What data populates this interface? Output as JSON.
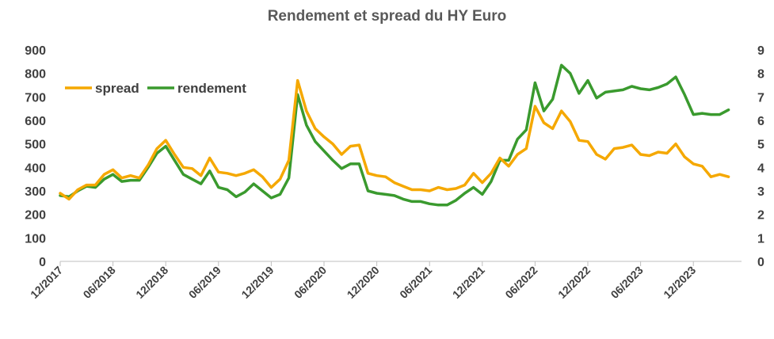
{
  "chart_data": {
    "type": "line",
    "title": "Rendement et spread du HY Euro",
    "xlabel": "",
    "ylabel": "",
    "ylim": [
      0,
      900
    ],
    "y2lim": [
      0,
      9
    ],
    "y_ticks": [
      0,
      100,
      200,
      300,
      400,
      500,
      600,
      700,
      800,
      900
    ],
    "y2_ticks": [
      0,
      1,
      2,
      3,
      4,
      5,
      6,
      7,
      8,
      9
    ],
    "x_tick_labels": [
      "12/2017",
      "06/2018",
      "12/2018",
      "06/2019",
      "12/2019",
      "06/2020",
      "12/2020",
      "06/2021",
      "12/2021",
      "06/2022",
      "12/2022",
      "06/2023",
      "12/2023"
    ],
    "x_start_month": "12/2017",
    "grid": false,
    "legend_position": "top-left",
    "colors": {
      "spread": "#F5A800",
      "rendement": "#3A9A2E"
    },
    "series": [
      {
        "name": "spread",
        "axis": "left",
        "values": [
          290,
          265,
          305,
          325,
          325,
          370,
          390,
          355,
          365,
          355,
          410,
          480,
          515,
          455,
          400,
          395,
          365,
          440,
          380,
          375,
          365,
          375,
          390,
          360,
          315,
          350,
          430,
          770,
          640,
          565,
          530,
          500,
          455,
          490,
          495,
          375,
          365,
          360,
          335,
          320,
          305,
          305,
          300,
          315,
          305,
          310,
          325,
          375,
          335,
          375,
          440,
          405,
          455,
          480,
          660,
          590,
          565,
          640,
          595,
          515,
          510,
          455,
          435,
          480,
          485,
          495,
          455,
          450,
          465,
          460,
          500,
          445,
          415,
          405,
          360,
          370,
          360
        ]
      },
      {
        "name": "rendement",
        "axis": "right",
        "values": [
          2.8,
          2.75,
          3.0,
          3.2,
          3.15,
          3.5,
          3.7,
          3.4,
          3.45,
          3.45,
          4.0,
          4.6,
          4.9,
          4.3,
          3.7,
          3.5,
          3.3,
          3.85,
          3.15,
          3.05,
          2.75,
          2.95,
          3.3,
          3.0,
          2.7,
          2.85,
          3.55,
          7.1,
          5.8,
          5.1,
          4.7,
          4.3,
          3.95,
          4.15,
          4.15,
          3.0,
          2.9,
          2.85,
          2.8,
          2.65,
          2.55,
          2.55,
          2.45,
          2.4,
          2.4,
          2.6,
          2.9,
          3.15,
          2.85,
          3.4,
          4.3,
          4.3,
          5.2,
          5.6,
          7.6,
          6.4,
          6.9,
          8.35,
          8.0,
          7.15,
          7.7,
          6.95,
          7.2,
          7.25,
          7.3,
          7.45,
          7.35,
          7.3,
          7.4,
          7.55,
          7.85,
          7.1,
          6.25,
          6.3,
          6.25,
          6.25,
          6.45
        ]
      }
    ]
  }
}
